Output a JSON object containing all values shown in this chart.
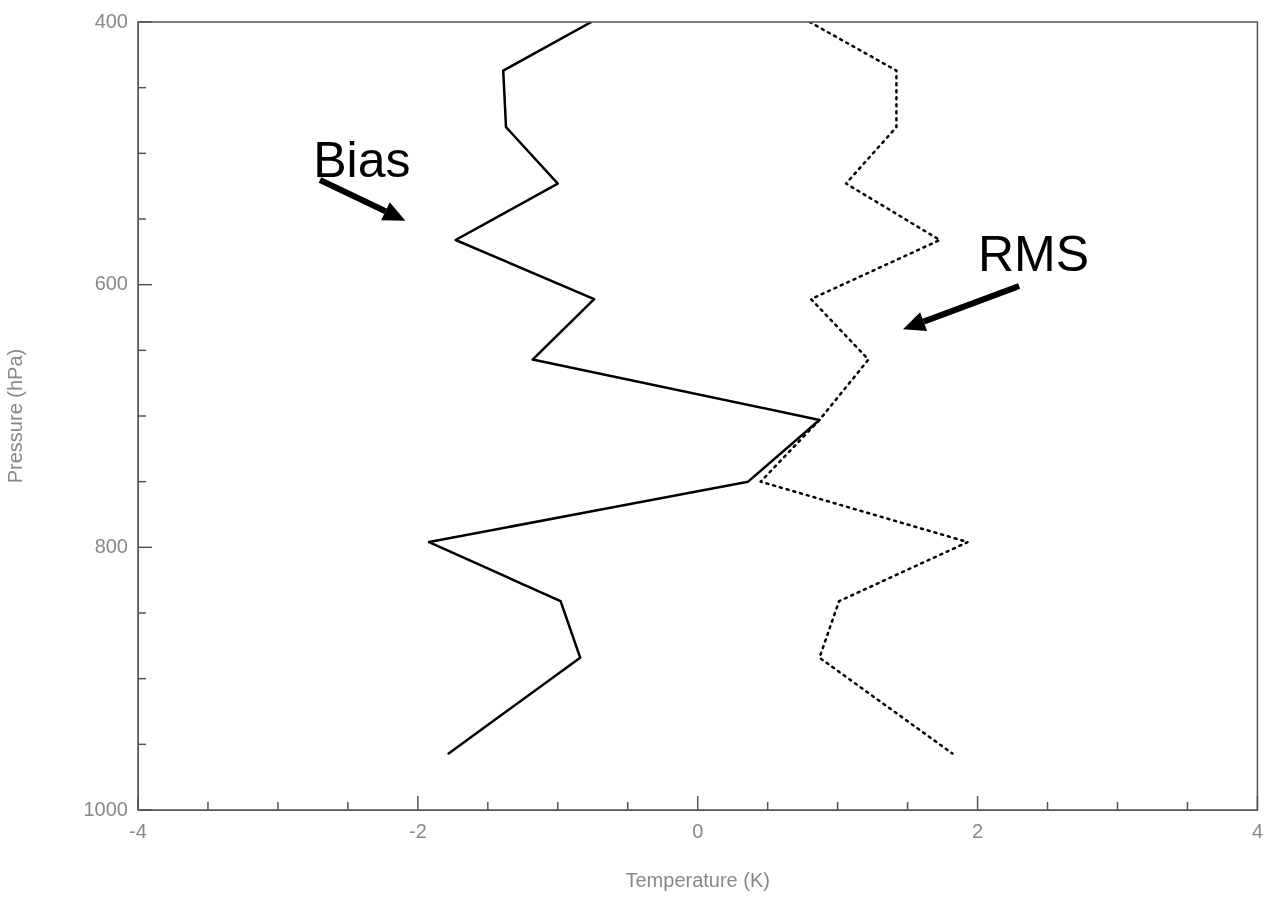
{
  "chart_data": {
    "type": "line",
    "xlabel": "Temperature (K)",
    "ylabel": "Pressure (hPa)",
    "legend": false,
    "grid": false,
    "marker": "none",
    "xlim": [
      -4,
      4
    ],
    "xticks": [
      -4,
      {
        "value": -3.5,
        "label": null
      },
      {
        "value": -3,
        "label": null
      },
      {
        "value": -2.5,
        "label": null
      },
      -2,
      {
        "value": -1.5,
        "label": null
      },
      {
        "value": -1,
        "label": null
      },
      {
        "value": -0.5,
        "label": null
      },
      0,
      {
        "value": 0.5,
        "label": null
      },
      {
        "value": 1,
        "label": null
      },
      {
        "value": 1.5,
        "label": null
      },
      2,
      {
        "value": 2.5,
        "label": null
      },
      {
        "value": 3,
        "label": null
      },
      {
        "value": 3.5,
        "label": null
      },
      4
    ],
    "ylim": [
      1000,
      400
    ],
    "yticks": [
      400,
      {
        "value": 450,
        "label": null
      },
      {
        "value": 500,
        "label": null
      },
      {
        "value": 550,
        "label": null
      },
      600,
      {
        "value": 650,
        "label": null
      },
      {
        "value": 700,
        "label": null
      },
      {
        "value": 750,
        "label": null
      },
      800,
      {
        "value": 850,
        "label": null
      },
      {
        "value": 900,
        "label": null
      },
      {
        "value": 950,
        "label": null
      },
      1000
    ],
    "series": [
      {
        "color": "#000000",
        "line_style": "solid",
        "x": [
          -0.76,
          -1.39,
          -1.37,
          -1.0,
          -1.73,
          -0.74,
          -1.18,
          0.87,
          0.36,
          -1.92,
          -0.98,
          -0.84,
          -1.78
        ],
        "values": [
          400,
          437,
          480,
          523,
          566,
          611,
          657,
          703,
          750,
          796,
          841,
          884,
          957
        ]
      },
      {
        "color": "#000000",
        "line_style": "dotted",
        "x": [
          0.8,
          1.42,
          1.42,
          1.06,
          1.73,
          0.81,
          1.22,
          0.87,
          0.45,
          1.93,
          1.01,
          0.87,
          1.82
        ],
        "values": [
          400,
          437,
          480,
          523,
          566,
          611,
          657,
          703,
          750,
          796,
          841,
          884,
          957
        ]
      }
    ],
    "annotations": [
      "Bias",
      "RMS"
    ]
  }
}
